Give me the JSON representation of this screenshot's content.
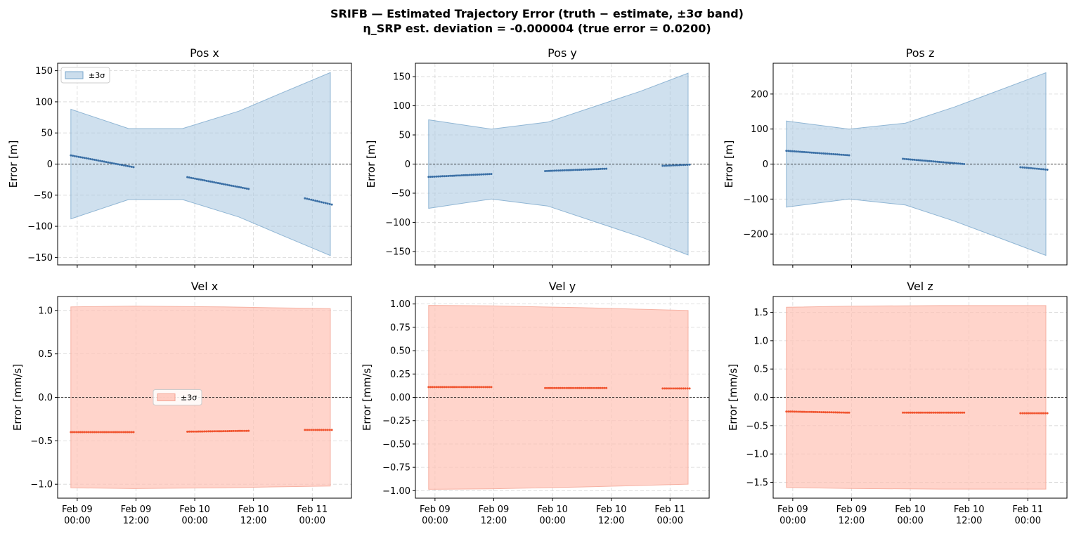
{
  "figure": {
    "title_line1": "SRIFB — Estimated Trajectory Error  (truth − estimate,  ±3σ band)",
    "title_line2": "η_SRP est. deviation = -0.000004  (true error = 0.0200)"
  },
  "colors": {
    "pos_fill": "#a8c6e0",
    "pos_edge": "#7aa7cc",
    "pos_point": "#3a6fa5",
    "vel_fill": "#ffc2b5",
    "vel_edge": "#f4a493",
    "vel_point": "#f0532e",
    "grid": "#d6d6d6",
    "zero_line": "#000000"
  },
  "x_ticks": [
    {
      "t": 0,
      "line1": "Feb 09",
      "line2": "00:00"
    },
    {
      "t": 12,
      "line1": "Feb 09",
      "line2": "12:00"
    },
    {
      "t": 24,
      "line1": "Feb 10",
      "line2": "00:00"
    },
    {
      "t": 36,
      "line1": "Feb 10",
      "line2": "12:00"
    },
    {
      "t": 48,
      "line1": "Feb 11",
      "line2": "00:00"
    }
  ],
  "x_range_hours_from_feb09": [
    -4.0,
    56.0
  ],
  "chart_data": [
    {
      "type": "line",
      "title": "Pos x",
      "ylabel": "Error [m]",
      "ylim": [
        -162,
        162
      ],
      "yticks": [
        -150,
        -100,
        -50,
        0,
        50,
        100,
        150
      ],
      "tick_labels": [
        "−150",
        "−100",
        "−50",
        "0",
        "50",
        "100",
        "150"
      ],
      "grid": true,
      "legend": {
        "label": "±3σ",
        "position": "upper left"
      },
      "band": {
        "name": "±3σ",
        "x": [
          -1.3,
          10.5,
          21.5,
          33,
          42,
          51.7
        ],
        "upper": [
          88,
          57,
          57,
          85,
          115,
          147
        ]
      },
      "segments": [
        {
          "t": [
            -1.3,
            11.5
          ],
          "y": [
            14,
            -5
          ]
        },
        {
          "t": [
            22.5,
            35.0
          ],
          "y": [
            -21,
            -40
          ]
        },
        {
          "t": [
            46.5,
            52.0
          ],
          "y": [
            -55,
            -65
          ]
        }
      ]
    },
    {
      "type": "line",
      "title": "Pos y",
      "ylabel": "Error [m]",
      "ylim": [
        -173,
        173
      ],
      "yticks": [
        -150,
        -100,
        -50,
        0,
        50,
        100,
        150
      ],
      "tick_labels": [
        "−150",
        "−100",
        "−50",
        "0",
        "50",
        "100",
        "150"
      ],
      "grid": true,
      "legend": null,
      "band": {
        "name": "±3σ",
        "x": [
          -1.3,
          11.5,
          23,
          33,
          42,
          51.7
        ],
        "upper": [
          76,
          60,
          72,
          100,
          125,
          156
        ]
      },
      "segments": [
        {
          "t": [
            -1.3,
            11.5
          ],
          "y": [
            -22,
            -17
          ]
        },
        {
          "t": [
            22.5,
            35.0
          ],
          "y": [
            -12,
            -8
          ]
        },
        {
          "t": [
            46.5,
            52.0
          ],
          "y": [
            -3,
            -1
          ]
        }
      ]
    },
    {
      "type": "line",
      "title": "Pos z",
      "ylabel": "Error [m]",
      "ylim": [
        -288,
        288
      ],
      "yticks": [
        -200,
        -100,
        0,
        100,
        200
      ],
      "tick_labels": [
        "−200",
        "−100",
        "0",
        "100",
        "200"
      ],
      "grid": true,
      "legend": null,
      "band": {
        "name": "±3σ",
        "x": [
          -1.3,
          11.5,
          23,
          33,
          42,
          51.7
        ],
        "upper": [
          123,
          100,
          117,
          163,
          210,
          261
        ]
      },
      "segments": [
        {
          "t": [
            -1.3,
            11.5
          ],
          "y": [
            38,
            25
          ]
        },
        {
          "t": [
            22.5,
            35.0
          ],
          "y": [
            15,
            0
          ]
        },
        {
          "t": [
            46.5,
            52.0
          ],
          "y": [
            -9,
            -16
          ]
        }
      ]
    },
    {
      "type": "line",
      "title": "Vel x",
      "ylabel": "Error [mm/s]",
      "ylim": [
        -1.16,
        1.16
      ],
      "yticks": [
        -1.0,
        -0.5,
        0.0,
        0.5,
        1.0
      ],
      "tick_labels": [
        "−1.0",
        "−0.5",
        "0.0",
        "0.5",
        "1.0"
      ],
      "grid": true,
      "legend": {
        "label": "±3σ",
        "position": "center"
      },
      "band": {
        "name": "±3σ",
        "x": [
          -1.3,
          11.5,
          30,
          51.7
        ],
        "upper": [
          1.04,
          1.05,
          1.04,
          1.02
        ]
      },
      "segments": [
        {
          "t": [
            -1.3,
            11.5
          ],
          "y": [
            -0.4,
            -0.4
          ]
        },
        {
          "t": [
            22.5,
            35.0
          ],
          "y": [
            -0.395,
            -0.385
          ]
        },
        {
          "t": [
            46.5,
            52.0
          ],
          "y": [
            -0.375,
            -0.375
          ]
        }
      ]
    },
    {
      "type": "line",
      "title": "Vel y",
      "ylabel": "Error [mm/s]",
      "ylim": [
        -1.08,
        1.08
      ],
      "yticks": [
        -1.0,
        -0.75,
        -0.5,
        -0.25,
        0.0,
        0.25,
        0.5,
        0.75,
        1.0
      ],
      "tick_labels": [
        "−1.00",
        "−0.75",
        "−0.50",
        "−0.25",
        "0.00",
        "0.25",
        "0.50",
        "0.75",
        "1.00"
      ],
      "grid": true,
      "legend": null,
      "band": {
        "name": "±3σ",
        "x": [
          -1.3,
          11.5,
          30,
          51.7
        ],
        "upper": [
          0.985,
          0.98,
          0.96,
          0.93
        ]
      },
      "segments": [
        {
          "t": [
            -1.3,
            11.5
          ],
          "y": [
            0.11,
            0.11
          ]
        },
        {
          "t": [
            22.5,
            35.0
          ],
          "y": [
            0.1,
            0.1
          ]
        },
        {
          "t": [
            46.5,
            52.0
          ],
          "y": [
            0.095,
            0.095
          ]
        }
      ]
    },
    {
      "type": "line",
      "title": "Vel z",
      "ylabel": "Error [mm/s]",
      "ylim": [
        -1.78,
        1.78
      ],
      "yticks": [
        -1.5,
        -1.0,
        -0.5,
        0.0,
        0.5,
        1.0,
        1.5
      ],
      "tick_labels": [
        "−1.5",
        "−1.0",
        "−0.5",
        "0.0",
        "0.5",
        "1.0",
        "1.5"
      ],
      "grid": true,
      "legend": null,
      "band": {
        "name": "±3σ",
        "x": [
          -1.3,
          11.5,
          30,
          51.7
        ],
        "upper": [
          1.59,
          1.61,
          1.62,
          1.62
        ]
      },
      "segments": [
        {
          "t": [
            -1.3,
            11.5
          ],
          "y": [
            -0.25,
            -0.27
          ]
        },
        {
          "t": [
            22.5,
            35.0
          ],
          "y": [
            -0.27,
            -0.27
          ]
        },
        {
          "t": [
            46.5,
            52.0
          ],
          "y": [
            -0.28,
            -0.28
          ]
        }
      ]
    }
  ]
}
